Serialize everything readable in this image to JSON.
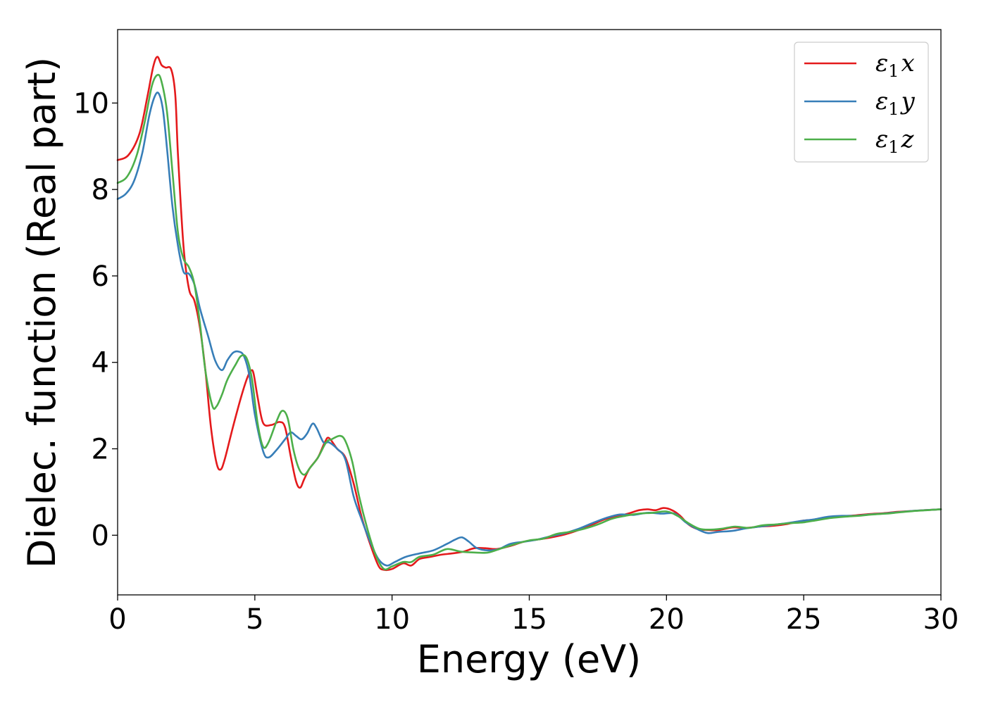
{
  "chart_data": {
    "type": "line",
    "title": "",
    "xlabel": "Energy (eV)",
    "ylabel": "Dielec. function (Real part)",
    "xlim": [
      0,
      30
    ],
    "ylim": [
      -1.38,
      11.7
    ],
    "xticks": [
      "0",
      "5",
      "10",
      "15",
      "20",
      "25",
      "30"
    ],
    "yticks": [
      "0",
      "2",
      "4",
      "6",
      "8",
      "10"
    ],
    "grid": false,
    "legend_position": "top-right",
    "series": [
      {
        "name": "ε1x",
        "legend_base": "ε",
        "legend_sub": "1",
        "legend_tail": "x",
        "color": "#e41a1c",
        "points": [
          [
            0,
            8.68
          ],
          [
            0.4,
            8.8
          ],
          [
            0.8,
            9.3
          ],
          [
            1.1,
            10.2
          ],
          [
            1.3,
            10.85
          ],
          [
            1.45,
            11.07
          ],
          [
            1.6,
            10.88
          ],
          [
            1.75,
            10.82
          ],
          [
            1.95,
            10.78
          ],
          [
            2.1,
            10.2
          ],
          [
            2.2,
            8.8
          ],
          [
            2.4,
            6.7
          ],
          [
            2.6,
            5.7
          ],
          [
            2.8,
            5.42
          ],
          [
            3.0,
            4.8
          ],
          [
            3.2,
            3.8
          ],
          [
            3.4,
            2.5
          ],
          [
            3.6,
            1.68
          ],
          [
            3.75,
            1.52
          ],
          [
            3.9,
            1.75
          ],
          [
            4.2,
            2.5
          ],
          [
            4.5,
            3.2
          ],
          [
            4.7,
            3.6
          ],
          [
            4.85,
            3.8
          ],
          [
            4.95,
            3.75
          ],
          [
            5.1,
            3.2
          ],
          [
            5.3,
            2.6
          ],
          [
            5.6,
            2.55
          ],
          [
            5.9,
            2.62
          ],
          [
            6.1,
            2.5
          ],
          [
            6.3,
            1.85
          ],
          [
            6.5,
            1.25
          ],
          [
            6.65,
            1.1
          ],
          [
            6.8,
            1.3
          ],
          [
            7.0,
            1.55
          ],
          [
            7.3,
            1.8
          ],
          [
            7.55,
            2.15
          ],
          [
            7.7,
            2.25
          ],
          [
            8.0,
            2.0
          ],
          [
            8.3,
            1.8
          ],
          [
            8.6,
            1.2
          ],
          [
            8.9,
            0.4
          ],
          [
            9.2,
            -0.2
          ],
          [
            9.5,
            -0.7
          ],
          [
            9.7,
            -0.8
          ],
          [
            10.0,
            -0.78
          ],
          [
            10.4,
            -0.65
          ],
          [
            10.7,
            -0.7
          ],
          [
            11.0,
            -0.55
          ],
          [
            11.4,
            -0.5
          ],
          [
            11.8,
            -0.45
          ],
          [
            12.2,
            -0.42
          ],
          [
            12.6,
            -0.38
          ],
          [
            13.0,
            -0.3
          ],
          [
            13.4,
            -0.3
          ],
          [
            13.8,
            -0.32
          ],
          [
            14.3,
            -0.25
          ],
          [
            14.8,
            -0.15
          ],
          [
            15.3,
            -0.1
          ],
          [
            15.8,
            -0.05
          ],
          [
            16.3,
            0.02
          ],
          [
            16.8,
            0.12
          ],
          [
            17.3,
            0.25
          ],
          [
            17.8,
            0.38
          ],
          [
            18.3,
            0.45
          ],
          [
            18.7,
            0.52
          ],
          [
            19.0,
            0.58
          ],
          [
            19.3,
            0.6
          ],
          [
            19.6,
            0.58
          ],
          [
            19.9,
            0.63
          ],
          [
            20.2,
            0.58
          ],
          [
            20.5,
            0.45
          ],
          [
            20.8,
            0.25
          ],
          [
            21.1,
            0.15
          ],
          [
            21.5,
            0.12
          ],
          [
            21.9,
            0.12
          ],
          [
            22.4,
            0.18
          ],
          [
            22.9,
            0.17
          ],
          [
            23.4,
            0.2
          ],
          [
            23.9,
            0.22
          ],
          [
            24.4,
            0.26
          ],
          [
            24.9,
            0.33
          ],
          [
            25.4,
            0.36
          ],
          [
            25.9,
            0.4
          ],
          [
            26.4,
            0.44
          ],
          [
            26.9,
            0.46
          ],
          [
            27.4,
            0.49
          ],
          [
            27.9,
            0.51
          ],
          [
            28.4,
            0.54
          ],
          [
            28.9,
            0.56
          ],
          [
            29.4,
            0.58
          ],
          [
            30,
            0.6
          ]
        ]
      },
      {
        "name": "ε1y",
        "legend_base": "ε",
        "legend_sub": "1",
        "legend_tail": "y",
        "color": "#377eb8",
        "points": [
          [
            0,
            7.78
          ],
          [
            0.3,
            7.9
          ],
          [
            0.6,
            8.2
          ],
          [
            0.9,
            8.85
          ],
          [
            1.15,
            9.7
          ],
          [
            1.35,
            10.15
          ],
          [
            1.5,
            10.22
          ],
          [
            1.65,
            9.85
          ],
          [
            1.8,
            8.95
          ],
          [
            2.0,
            7.6
          ],
          [
            2.2,
            6.7
          ],
          [
            2.4,
            6.1
          ],
          [
            2.6,
            6.05
          ],
          [
            2.8,
            5.8
          ],
          [
            3.0,
            5.25
          ],
          [
            3.3,
            4.6
          ],
          [
            3.55,
            4.05
          ],
          [
            3.8,
            3.82
          ],
          [
            4.0,
            4.05
          ],
          [
            4.2,
            4.22
          ],
          [
            4.4,
            4.25
          ],
          [
            4.6,
            4.15
          ],
          [
            4.8,
            3.7
          ],
          [
            5.0,
            2.8
          ],
          [
            5.3,
            1.95
          ],
          [
            5.5,
            1.8
          ],
          [
            5.8,
            1.98
          ],
          [
            6.1,
            2.22
          ],
          [
            6.3,
            2.38
          ],
          [
            6.5,
            2.3
          ],
          [
            6.7,
            2.22
          ],
          [
            6.9,
            2.35
          ],
          [
            7.1,
            2.58
          ],
          [
            7.25,
            2.48
          ],
          [
            7.5,
            2.15
          ],
          [
            7.7,
            2.15
          ],
          [
            8.0,
            2.0
          ],
          [
            8.3,
            1.75
          ],
          [
            8.6,
            0.9
          ],
          [
            8.9,
            0.35
          ],
          [
            9.2,
            -0.15
          ],
          [
            9.5,
            -0.55
          ],
          [
            9.8,
            -0.7
          ],
          [
            10.1,
            -0.62
          ],
          [
            10.5,
            -0.5
          ],
          [
            11.0,
            -0.42
          ],
          [
            11.5,
            -0.35
          ],
          [
            12.0,
            -0.2
          ],
          [
            12.3,
            -0.1
          ],
          [
            12.55,
            -0.05
          ],
          [
            12.8,
            -0.15
          ],
          [
            13.1,
            -0.3
          ],
          [
            13.5,
            -0.35
          ],
          [
            13.9,
            -0.32
          ],
          [
            14.3,
            -0.2
          ],
          [
            14.8,
            -0.15
          ],
          [
            15.3,
            -0.1
          ],
          [
            15.8,
            -0.02
          ],
          [
            16.3,
            0.05
          ],
          [
            16.8,
            0.15
          ],
          [
            17.3,
            0.28
          ],
          [
            17.8,
            0.4
          ],
          [
            18.3,
            0.48
          ],
          [
            18.8,
            0.47
          ],
          [
            19.3,
            0.52
          ],
          [
            19.8,
            0.5
          ],
          [
            20.3,
            0.5
          ],
          [
            20.7,
            0.3
          ],
          [
            21.1,
            0.15
          ],
          [
            21.5,
            0.05
          ],
          [
            21.9,
            0.08
          ],
          [
            22.4,
            0.1
          ],
          [
            22.9,
            0.16
          ],
          [
            23.4,
            0.2
          ],
          [
            23.9,
            0.24
          ],
          [
            24.4,
            0.28
          ],
          [
            24.9,
            0.33
          ],
          [
            25.4,
            0.37
          ],
          [
            25.9,
            0.43
          ],
          [
            26.4,
            0.45
          ],
          [
            26.9,
            0.45
          ],
          [
            27.4,
            0.48
          ],
          [
            27.9,
            0.5
          ],
          [
            28.4,
            0.53
          ],
          [
            28.9,
            0.56
          ],
          [
            29.4,
            0.58
          ],
          [
            30,
            0.6
          ]
        ]
      },
      {
        "name": "ε1z",
        "legend_base": "ε",
        "legend_sub": "1",
        "legend_tail": "z",
        "color": "#4daf4a",
        "points": [
          [
            0,
            8.15
          ],
          [
            0.35,
            8.3
          ],
          [
            0.7,
            8.8
          ],
          [
            1.0,
            9.6
          ],
          [
            1.25,
            10.4
          ],
          [
            1.45,
            10.65
          ],
          [
            1.6,
            10.5
          ],
          [
            1.8,
            9.8
          ],
          [
            2.0,
            8.4
          ],
          [
            2.2,
            7.0
          ],
          [
            2.4,
            6.4
          ],
          [
            2.6,
            6.2
          ],
          [
            2.8,
            5.8
          ],
          [
            3.0,
            4.9
          ],
          [
            3.2,
            3.8
          ],
          [
            3.45,
            3.0
          ],
          [
            3.6,
            2.98
          ],
          [
            3.8,
            3.25
          ],
          [
            4.0,
            3.6
          ],
          [
            4.3,
            3.95
          ],
          [
            4.5,
            4.15
          ],
          [
            4.7,
            4.1
          ],
          [
            4.9,
            3.6
          ],
          [
            5.1,
            2.6
          ],
          [
            5.3,
            2.05
          ],
          [
            5.5,
            2.15
          ],
          [
            5.8,
            2.65
          ],
          [
            6.0,
            2.88
          ],
          [
            6.2,
            2.7
          ],
          [
            6.4,
            2.0
          ],
          [
            6.6,
            1.55
          ],
          [
            6.8,
            1.4
          ],
          [
            7.0,
            1.55
          ],
          [
            7.3,
            1.8
          ],
          [
            7.6,
            2.15
          ],
          [
            7.8,
            2.22
          ],
          [
            8.1,
            2.3
          ],
          [
            8.3,
            2.18
          ],
          [
            8.55,
            1.7
          ],
          [
            8.8,
            0.9
          ],
          [
            9.1,
            0.15
          ],
          [
            9.4,
            -0.45
          ],
          [
            9.7,
            -0.78
          ],
          [
            10.0,
            -0.72
          ],
          [
            10.4,
            -0.62
          ],
          [
            10.7,
            -0.62
          ],
          [
            11.0,
            -0.5
          ],
          [
            11.5,
            -0.45
          ],
          [
            12.0,
            -0.32
          ],
          [
            12.5,
            -0.38
          ],
          [
            13.0,
            -0.4
          ],
          [
            13.5,
            -0.4
          ],
          [
            14.0,
            -0.3
          ],
          [
            14.5,
            -0.2
          ],
          [
            15.0,
            -0.12
          ],
          [
            15.5,
            -0.08
          ],
          [
            16.0,
            0.03
          ],
          [
            16.5,
            0.08
          ],
          [
            17.0,
            0.15
          ],
          [
            17.5,
            0.25
          ],
          [
            18.0,
            0.38
          ],
          [
            18.5,
            0.45
          ],
          [
            19.0,
            0.5
          ],
          [
            19.5,
            0.52
          ],
          [
            20.0,
            0.55
          ],
          [
            20.4,
            0.45
          ],
          [
            20.8,
            0.28
          ],
          [
            21.2,
            0.15
          ],
          [
            21.6,
            0.13
          ],
          [
            22.0,
            0.15
          ],
          [
            22.5,
            0.2
          ],
          [
            23.0,
            0.17
          ],
          [
            23.5,
            0.23
          ],
          [
            24.0,
            0.25
          ],
          [
            24.5,
            0.28
          ],
          [
            25.0,
            0.3
          ],
          [
            25.5,
            0.35
          ],
          [
            26.0,
            0.4
          ],
          [
            26.5,
            0.43
          ],
          [
            27.0,
            0.45
          ],
          [
            27.5,
            0.48
          ],
          [
            28.0,
            0.5
          ],
          [
            28.5,
            0.53
          ],
          [
            29.0,
            0.56
          ],
          [
            29.5,
            0.58
          ],
          [
            30,
            0.6
          ]
        ]
      }
    ]
  }
}
